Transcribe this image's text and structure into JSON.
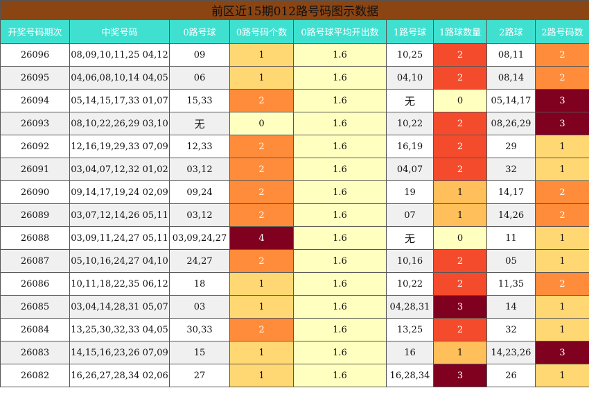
{
  "title": "前区近15期012路号码图示数据",
  "headers": [
    "开奖号码期次",
    "中奖号码",
    "0路号球",
    "0路号码个数",
    "0路号球平均开出数",
    "1路号球",
    "1路球数量",
    "2路球",
    "2路号码数"
  ],
  "colors": {
    "title_bg": "#8b4513",
    "header_bg": "#40e0d0",
    "count_0": "#ffffc0",
    "count_1": "#ffd873",
    "count_1_alt": "#ffbf5a",
    "count_2_orange": "#ff8c3a",
    "count_2_red": "#f44b2c",
    "count_3_4": "#800020"
  },
  "rows": [
    {
      "period": "26096",
      "numbers": "08,09,10,11,25 04,12",
      "r0": "09",
      "c0": "1",
      "avg": "1.6",
      "r1": "10,25",
      "c1": "2",
      "r2": "08,11",
      "c2": "2"
    },
    {
      "period": "26095",
      "numbers": "04,06,08,10,14 04,05",
      "r0": "06",
      "c0": "1",
      "avg": "1.6",
      "r1": "04,10",
      "c1": "2",
      "r2": "08,14",
      "c2": "2"
    },
    {
      "period": "26094",
      "numbers": "05,14,15,17,33 01,07",
      "r0": "15,33",
      "c0": "2",
      "avg": "1.6",
      "r1": "无",
      "c1": "0",
      "r2": "05,14,17",
      "c2": "3"
    },
    {
      "period": "26093",
      "numbers": "08,10,22,26,29 03,10",
      "r0": "无",
      "c0": "0",
      "avg": "1.6",
      "r1": "10,22",
      "c1": "2",
      "r2": "08,26,29",
      "c2": "3"
    },
    {
      "period": "26092",
      "numbers": "12,16,19,29,33 07,09",
      "r0": "12,33",
      "c0": "2",
      "avg": "1.6",
      "r1": "16,19",
      "c1": "2",
      "r2": "29",
      "c2": "1"
    },
    {
      "period": "26091",
      "numbers": "03,04,07,12,32 01,02",
      "r0": "03,12",
      "c0": "2",
      "avg": "1.6",
      "r1": "04,07",
      "c1": "2",
      "r2": "32",
      "c2": "1"
    },
    {
      "period": "26090",
      "numbers": "09,14,17,19,24 02,09",
      "r0": "09,24",
      "c0": "2",
      "avg": "1.6",
      "r1": "19",
      "c1": "1",
      "r2": "14,17",
      "c2": "2"
    },
    {
      "period": "26089",
      "numbers": "03,07,12,14,26 05,11",
      "r0": "03,12",
      "c0": "2",
      "avg": "1.6",
      "r1": "07",
      "c1": "1",
      "r2": "14,26",
      "c2": "2"
    },
    {
      "period": "26088",
      "numbers": "03,09,11,24,27 05,11",
      "r0": "03,09,24,27",
      "c0": "4",
      "avg": "1.6",
      "r1": "无",
      "c1": "0",
      "r2": "11",
      "c2": "1"
    },
    {
      "period": "26087",
      "numbers": "05,10,16,24,27 04,10",
      "r0": "24,27",
      "c0": "2",
      "avg": "1.6",
      "r1": "10,16",
      "c1": "2",
      "r2": "05",
      "c2": "1"
    },
    {
      "period": "26086",
      "numbers": "10,11,18,22,35 06,12",
      "r0": "18",
      "c0": "1",
      "avg": "1.6",
      "r1": "10,22",
      "c1": "2",
      "r2": "11,35",
      "c2": "2"
    },
    {
      "period": "26085",
      "numbers": "03,04,14,28,31 05,07",
      "r0": "03",
      "c0": "1",
      "avg": "1.6",
      "r1": "04,28,31",
      "c1": "3",
      "r2": "14",
      "c2": "1"
    },
    {
      "period": "26084",
      "numbers": "13,25,30,32,33 04,05",
      "r0": "30,33",
      "c0": "2",
      "avg": "1.6",
      "r1": "13,25",
      "c1": "2",
      "r2": "32",
      "c2": "1"
    },
    {
      "period": "26083",
      "numbers": "14,15,16,23,26 07,09",
      "r0": "15",
      "c0": "1",
      "avg": "1.6",
      "r1": "16",
      "c1": "1",
      "r2": "14,23,26",
      "c2": "3"
    },
    {
      "period": "26082",
      "numbers": "16,26,27,28,34 02,06",
      "r0": "27",
      "c0": "1",
      "avg": "1.6",
      "r1": "16,28,34",
      "c1": "3",
      "r2": "26",
      "c2": "1"
    }
  ]
}
